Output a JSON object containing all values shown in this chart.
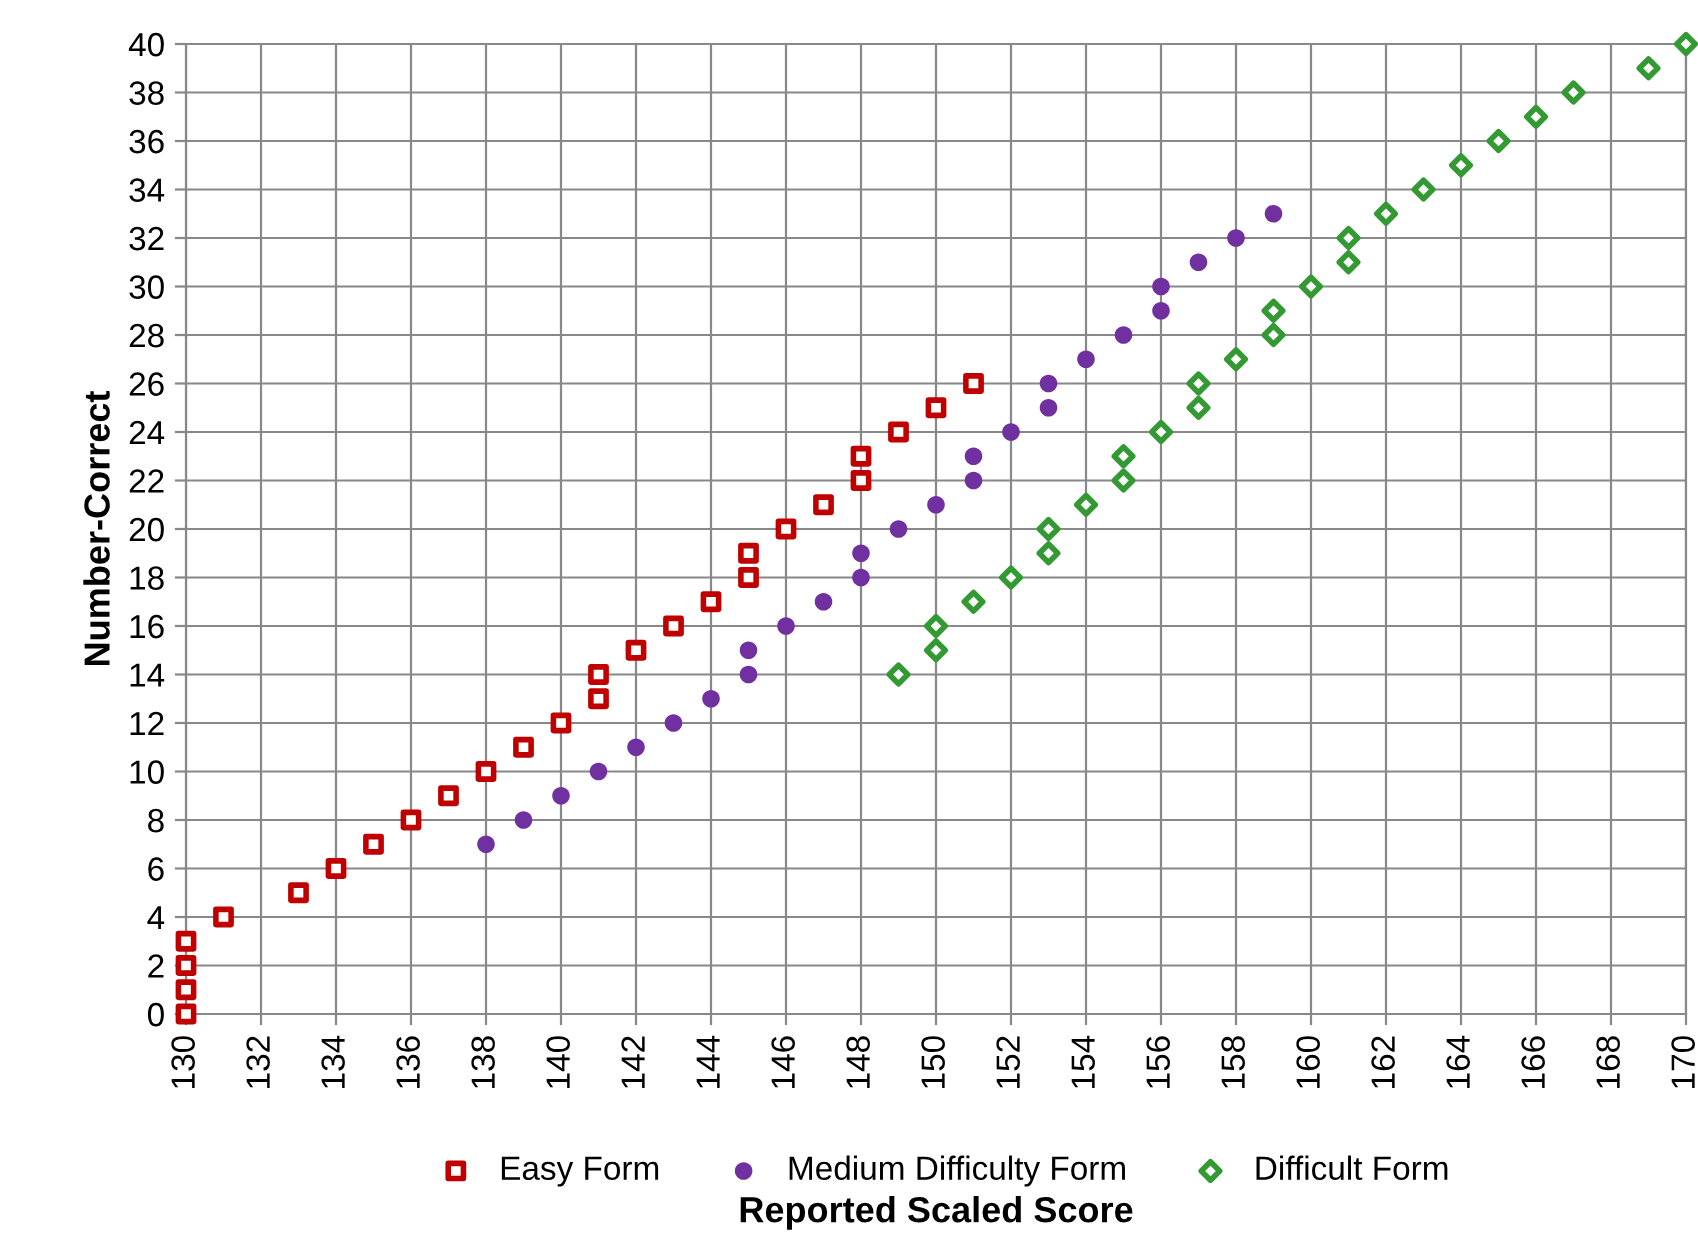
{
  "chart_data": {
    "type": "scatter",
    "xlabel": "Reported Scaled Score",
    "ylabel": "Number-Correct",
    "xlim": [
      130,
      170
    ],
    "xticks": [
      130,
      132,
      134,
      136,
      138,
      140,
      142,
      144,
      146,
      148,
      150,
      152,
      154,
      156,
      158,
      160,
      162,
      164,
      166,
      168,
      170
    ],
    "ylim": [
      0,
      40
    ],
    "yticks": [
      0,
      2,
      4,
      6,
      8,
      10,
      12,
      14,
      16,
      18,
      20,
      22,
      24,
      26,
      28,
      30,
      32,
      34,
      36,
      38,
      40
    ],
    "grid": true,
    "legend": "bottom",
    "series": [
      {
        "name": "Easy Form",
        "color": "#c00000",
        "marker": "square",
        "x": [
          130,
          130,
          130,
          130,
          131,
          133,
          134,
          135,
          136,
          137,
          138,
          139,
          140,
          141,
          141,
          142,
          143,
          144,
          145,
          145,
          146,
          147,
          148,
          148,
          149,
          150,
          151
        ],
        "values": [
          0,
          1,
          2,
          3,
          4,
          5,
          6,
          7,
          8,
          9,
          10,
          11,
          12,
          13,
          14,
          15,
          16,
          17,
          18,
          19,
          20,
          21,
          22,
          23,
          24,
          25,
          26
        ]
      },
      {
        "name": "Medium Difficulty Form",
        "color": "#7030a0",
        "marker": "circle",
        "x": [
          138,
          139,
          140,
          141,
          142,
          143,
          144,
          145,
          145,
          146,
          147,
          148,
          148,
          149,
          150,
          151,
          151,
          152,
          153,
          153,
          154,
          155,
          156,
          156,
          157,
          158,
          159
        ],
        "values": [
          7,
          8,
          9,
          10,
          11,
          12,
          13,
          14,
          15,
          16,
          17,
          18,
          19,
          20,
          21,
          22,
          23,
          24,
          25,
          26,
          27,
          28,
          29,
          30,
          31,
          32,
          33
        ]
      },
      {
        "name": "Difficult Form",
        "color": "#339933",
        "marker": "diamond",
        "x": [
          149,
          150,
          150,
          151,
          152,
          153,
          153,
          154,
          155,
          155,
          156,
          157,
          157,
          158,
          159,
          159,
          160,
          161,
          161,
          162,
          163,
          164,
          165,
          166,
          167,
          169,
          170
        ],
        "values": [
          14,
          15,
          16,
          17,
          18,
          19,
          20,
          21,
          22,
          23,
          24,
          25,
          26,
          27,
          28,
          29,
          30,
          31,
          32,
          33,
          34,
          35,
          36,
          37,
          38,
          39,
          40
        ]
      }
    ]
  }
}
